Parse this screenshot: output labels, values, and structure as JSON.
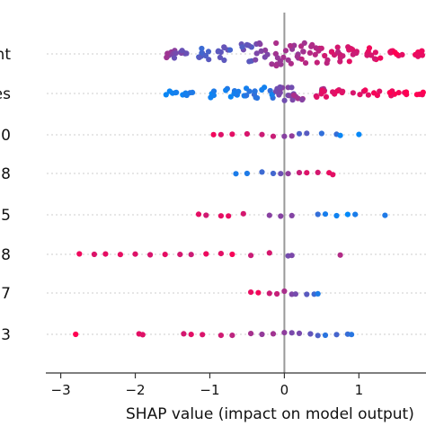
{
  "chart_data": {
    "type": "scatter",
    "title": "",
    "xlabel": "SHAP value (impact on model output)",
    "ylabel": "",
    "xlim": [
      -3.2,
      1.9
    ],
    "xticks": [
      -3,
      -2,
      -1,
      0,
      1
    ],
    "xtick_labels": [
      "−3",
      "−2",
      "−1",
      "0",
      "1"
    ],
    "zero_line": 0,
    "grid": "horizontal dotted row guides",
    "colors": {
      "high": "#ff0052",
      "low": "#008bfb",
      "zero_line": "#999999",
      "guide": "#cccccc"
    },
    "features": [
      {
        "label": "nt",
        "points": [
          [
            -1.5,
            0.55
          ],
          [
            -1.4,
            0.45
          ],
          [
            -1.1,
            0.3
          ],
          [
            -0.8,
            0.35
          ],
          [
            -0.5,
            0.4
          ],
          [
            -0.3,
            0.5
          ],
          [
            -0.1,
            0.6
          ],
          [
            0.1,
            0.65
          ],
          [
            0.3,
            0.7
          ],
          [
            0.5,
            0.75
          ],
          [
            0.7,
            0.8
          ],
          [
            0.9,
            0.85
          ],
          [
            1.2,
            0.9
          ],
          [
            1.5,
            0.95
          ],
          [
            1.8,
            0.95
          ]
        ]
      },
      {
        "label": "es",
        "points": [
          [
            -1.5,
            0.05
          ],
          [
            -1.4,
            0.1
          ],
          [
            -1.25,
            0.1
          ],
          [
            -0.9,
            0.05
          ],
          [
            -0.7,
            0.1
          ],
          [
            -0.6,
            0.15
          ],
          [
            -0.55,
            0.1
          ],
          [
            -0.45,
            0.2
          ],
          [
            -0.35,
            0.1
          ],
          [
            -0.2,
            0.15
          ],
          [
            -0.05,
            0.5
          ],
          [
            0.0,
            0.5
          ],
          [
            0.05,
            0.5
          ],
          [
            0.1,
            0.5
          ],
          [
            0.2,
            0.6
          ],
          [
            0.45,
            0.7
          ],
          [
            0.5,
            0.85
          ],
          [
            0.6,
            0.9
          ],
          [
            0.8,
            0.85
          ],
          [
            1.0,
            0.9
          ],
          [
            1.2,
            0.92
          ],
          [
            1.4,
            0.95
          ],
          [
            1.6,
            0.95
          ],
          [
            1.85,
            0.95
          ]
        ]
      },
      {
        "label": "0",
        "points": [
          [
            -0.95,
            0.9
          ],
          [
            -0.85,
            0.85
          ],
          [
            -0.7,
            0.9
          ],
          [
            -0.5,
            0.85
          ],
          [
            -0.3,
            0.8
          ],
          [
            -0.15,
            0.75
          ],
          [
            0.0,
            0.6
          ],
          [
            0.1,
            0.5
          ],
          [
            0.2,
            0.35
          ],
          [
            0.3,
            0.3
          ],
          [
            0.5,
            0.2
          ],
          [
            0.7,
            0.15
          ],
          [
            0.75,
            0.1
          ],
          [
            1.0,
            0.05
          ]
        ]
      },
      {
        "label": "8",
        "points": [
          [
            -0.65,
            0.1
          ],
          [
            -0.5,
            0.15
          ],
          [
            -0.3,
            0.2
          ],
          [
            -0.15,
            0.3
          ],
          [
            -0.05,
            0.4
          ],
          [
            0.05,
            0.6
          ],
          [
            0.2,
            0.8
          ],
          [
            0.3,
            0.85
          ],
          [
            0.45,
            0.9
          ],
          [
            0.6,
            0.95
          ],
          [
            0.65,
            0.9
          ]
        ]
      },
      {
        "label": "5",
        "points": [
          [
            -1.15,
            0.9
          ],
          [
            -1.05,
            0.85
          ],
          [
            -0.85,
            0.9
          ],
          [
            -0.75,
            0.85
          ],
          [
            -0.55,
            0.8
          ],
          [
            -0.2,
            0.6
          ],
          [
            -0.05,
            0.5
          ],
          [
            0.1,
            0.45
          ],
          [
            0.45,
            0.2
          ],
          [
            0.55,
            0.15
          ],
          [
            0.7,
            0.1
          ],
          [
            0.85,
            0.05
          ],
          [
            0.95,
            0.1
          ],
          [
            1.35,
            0.05
          ]
        ]
      },
      {
        "label": "8",
        "points": [
          [
            -2.75,
            0.95
          ],
          [
            -2.55,
            0.9
          ],
          [
            -2.4,
            0.9
          ],
          [
            -2.2,
            0.9
          ],
          [
            -2.0,
            0.85
          ],
          [
            -1.8,
            0.9
          ],
          [
            -1.6,
            0.85
          ],
          [
            -1.4,
            0.9
          ],
          [
            -1.25,
            0.85
          ],
          [
            -1.05,
            0.9
          ],
          [
            -0.85,
            0.85
          ],
          [
            -0.7,
            0.9
          ],
          [
            -0.45,
            0.8
          ],
          [
            -0.2,
            0.9
          ],
          [
            0.05,
            0.4
          ],
          [
            0.1,
            0.5
          ],
          [
            0.75,
            0.7
          ]
        ]
      },
      {
        "label": "7",
        "points": [
          [
            -0.45,
            0.95
          ],
          [
            -0.35,
            0.9
          ],
          [
            -0.2,
            0.85
          ],
          [
            -0.1,
            0.8
          ],
          [
            0.0,
            0.7
          ],
          [
            0.1,
            0.5
          ],
          [
            0.15,
            0.45
          ],
          [
            0.3,
            0.3
          ],
          [
            0.4,
            0.2
          ],
          [
            0.45,
            0.15
          ]
        ]
      },
      {
        "label": "3",
        "points": [
          [
            -2.8,
            0.95
          ],
          [
            -1.95,
            0.9
          ],
          [
            -1.9,
            0.85
          ],
          [
            -1.35,
            0.9
          ],
          [
            -1.25,
            0.85
          ],
          [
            -1.1,
            0.9
          ],
          [
            -0.85,
            0.85
          ],
          [
            -0.7,
            0.8
          ],
          [
            -0.45,
            0.7
          ],
          [
            -0.3,
            0.65
          ],
          [
            -0.15,
            0.6
          ],
          [
            0.0,
            0.5
          ],
          [
            0.1,
            0.45
          ],
          [
            0.2,
            0.4
          ],
          [
            0.35,
            0.35
          ],
          [
            0.45,
            0.3
          ],
          [
            0.55,
            0.2
          ],
          [
            0.7,
            0.2
          ],
          [
            0.85,
            0.15
          ],
          [
            0.9,
            0.1
          ]
        ]
      }
    ]
  }
}
